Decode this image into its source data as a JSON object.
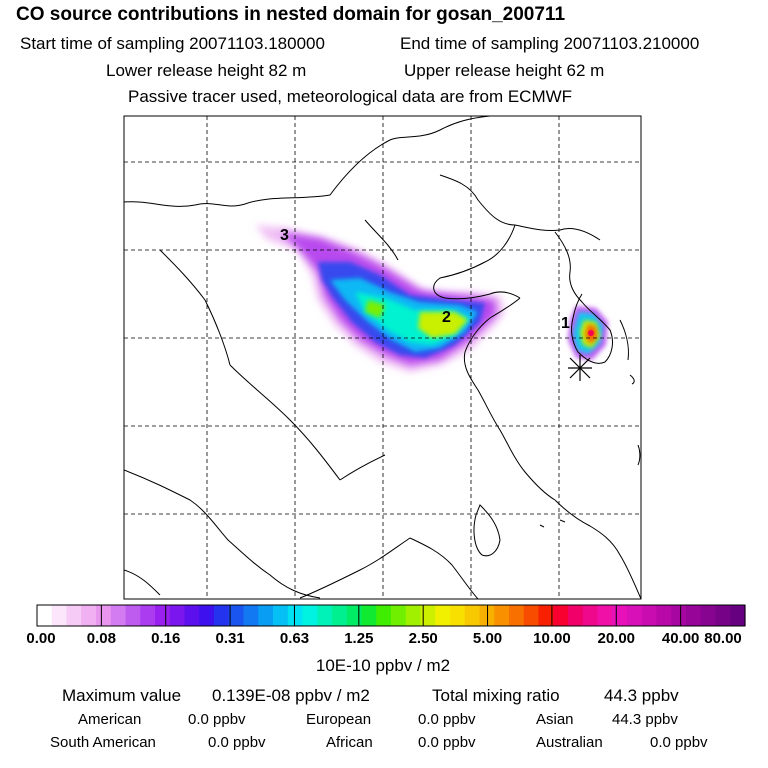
{
  "header": {
    "title": "CO  source contributions in nested domain for gosan_200711",
    "start_time": "Start time of sampling 20071103.180000",
    "end_time": "End time of sampling 20071103.210000",
    "lower_height": "Lower release height   82 m",
    "upper_height": "Upper release height   62 m",
    "tracer_note": "Passive tracer used, meteorological data are from ECMWF"
  },
  "map": {
    "labels": [
      "1",
      "2",
      "3"
    ]
  },
  "colorbar": {
    "labels": [
      "0.00",
      "0.08",
      "0.16",
      "0.31",
      "0.63",
      "1.25",
      "2.50",
      "5.00",
      "10.00",
      "20.00",
      "40.00",
      "80.00"
    ],
    "colors": [
      "#ffffff",
      "#fbe6fb",
      "#f6cbf6",
      "#f0b0f2",
      "#e996ee",
      "#d37bf0",
      "#bf5cf0",
      "#ab3cef",
      "#9a20ef",
      "#7b16ee",
      "#5c10ee",
      "#3e10ee",
      "#2433ee",
      "#1a55f0",
      "#1279f2",
      "#0a9df4",
      "#05c0f4",
      "#00e2f4",
      "#00f2e0",
      "#00f2b8",
      "#00f090",
      "#00ec66",
      "#10ea30",
      "#40ec00",
      "#70f000",
      "#a0f000",
      "#ccf000",
      "#f0f000",
      "#f8e000",
      "#f8c800",
      "#f8b000",
      "#f89000",
      "#f87000",
      "#f84c00",
      "#f82000",
      "#f80030",
      "#f00068",
      "#f0088c",
      "#f010a8",
      "#e810b8",
      "#d810b8",
      "#c80cb0",
      "#b808a8",
      "#a806a0",
      "#960498",
      "#860490",
      "#760288",
      "#660080"
    ],
    "units": "10E-10 ppbv / m2"
  },
  "stats": {
    "max_label": "Maximum value",
    "max_value": "0.139E-08 ppbv / m2",
    "total_label": "Total mixing ratio",
    "total_value": "44.3 ppbv",
    "regions": [
      {
        "name": "American",
        "value": "0.0 ppbv"
      },
      {
        "name": "European",
        "value": "0.0 ppbv"
      },
      {
        "name": "Asian",
        "value": "44.3 ppbv"
      },
      {
        "name": "South American",
        "value": "0.0 ppbv"
      },
      {
        "name": "African",
        "value": "0.0 ppbv"
      },
      {
        "name": "Australian",
        "value": "0.0 ppbv"
      }
    ]
  }
}
